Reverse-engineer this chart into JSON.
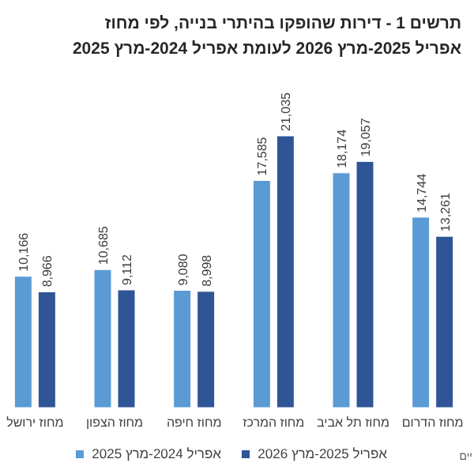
{
  "chart_data": {
    "type": "bar",
    "title": "תרשים 1 - דירות שהופקו בהיתרי בנייה, לפי מחוז",
    "subtitle": "אפריל 2025-מרץ 2026 לעומת אפריל 2024-מרץ 2025",
    "categories": [
      "מחוז ירושל",
      "מחוז הצפון",
      "מחוז חיפה",
      "מחוז המרכז",
      "מחוז תל אביב",
      "מחוז הדרום"
    ],
    "series": [
      {
        "name": "אפריל 2024-מרץ 2025",
        "color": "#5b9bd5",
        "values": [
          10166,
          10685,
          9080,
          17585,
          18174,
          14744
        ],
        "value_labels": [
          "10,166",
          "10,685",
          "9,080",
          "17,585",
          "18,174",
          "14,744"
        ]
      },
      {
        "name": "אפריל 2025-מרץ 2026",
        "color": "#2f5597",
        "values": [
          8966,
          9112,
          8998,
          21035,
          19057,
          13261
        ],
        "value_labels": [
          "8,966",
          "9,112",
          "8,998",
          "21,035",
          "19,057",
          "13,261"
        ]
      }
    ],
    "legend": "bottom",
    "annotations": [
      "יים"
    ]
  }
}
